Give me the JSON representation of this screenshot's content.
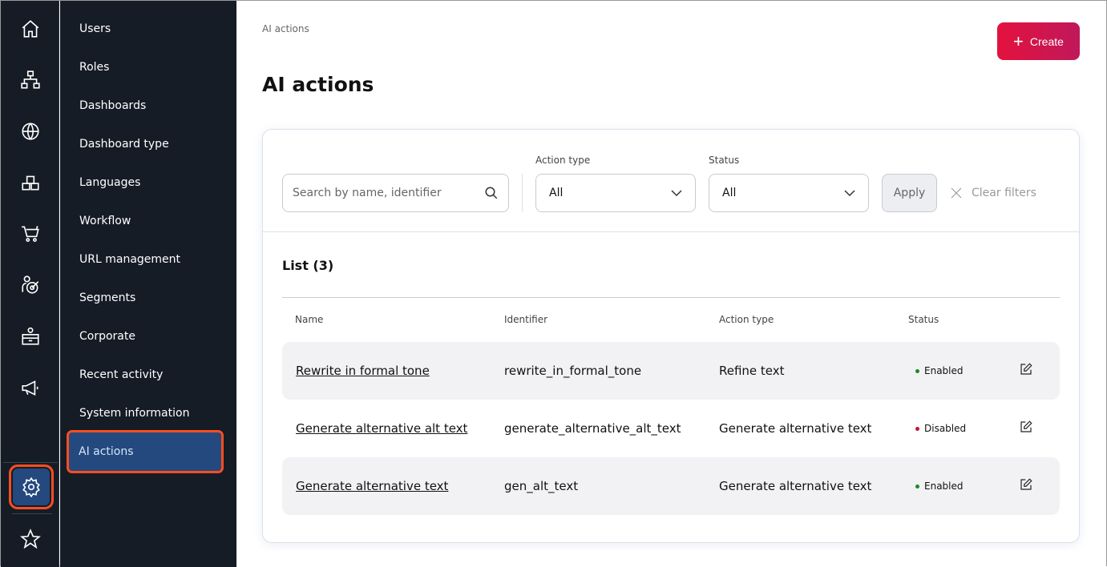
{
  "rail": {
    "icons": [
      "home-icon",
      "sitemap-icon",
      "globe-icon",
      "boxes-icon",
      "cart-icon",
      "target-user-icon",
      "reception-icon",
      "megaphone-icon",
      "gear-icon",
      "star-icon"
    ]
  },
  "nav": {
    "items": [
      "Users",
      "Roles",
      "Dashboards",
      "Dashboard type",
      "Languages",
      "Workflow",
      "URL management",
      "Segments",
      "Corporate",
      "Recent activity",
      "System information",
      "AI actions"
    ]
  },
  "main": {
    "breadcrumb": "AI actions",
    "title": "AI actions",
    "create_label": "Create",
    "filters": {
      "search_placeholder": "Search by name, identifier",
      "action_type_label": "Action type",
      "action_type_value": "All",
      "status_label": "Status",
      "status_value": "All",
      "apply_label": "Apply",
      "clear_label": "Clear filters"
    },
    "list": {
      "title": "List (3)",
      "columns": [
        "Name",
        "Identifier",
        "Action type",
        "Status"
      ],
      "rows": [
        {
          "name": "Rewrite in formal tone",
          "identifier": "rewrite_in_formal_tone",
          "action_type": "Refine text",
          "status": "Enabled"
        },
        {
          "name": "Generate alternative alt text",
          "identifier": "generate_alternative_alt_text",
          "action_type": "Generate alternative text",
          "status": "Disabled"
        },
        {
          "name": "Generate alternative text",
          "identifier": "gen_alt_text",
          "action_type": "Generate alternative text",
          "status": "Enabled"
        }
      ]
    }
  },
  "colors": {
    "enabled": "#1a8a2e",
    "disabled": "#c0143c",
    "accent": "#e3123e",
    "active_nav": "#23497e"
  }
}
